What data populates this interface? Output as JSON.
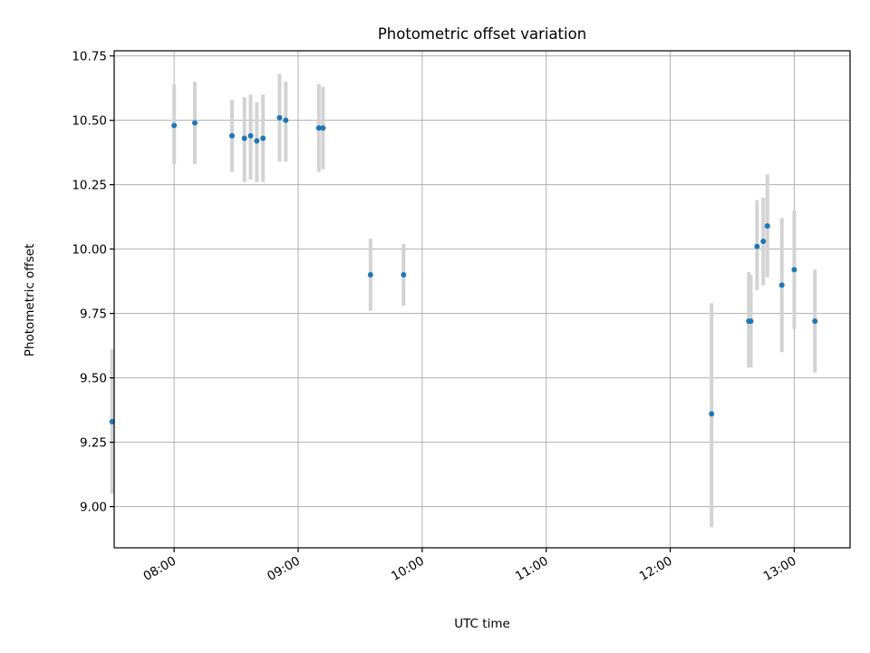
{
  "chart_data": {
    "type": "scatter",
    "title": "Photometric offset variation",
    "xlabel": "UTC time",
    "ylabel": "Photometric offset",
    "x_axis": {
      "kind": "time",
      "range": [
        "07:31",
        "13:27"
      ],
      "ticks": [
        "08:00",
        "09:00",
        "10:00",
        "11:00",
        "12:00",
        "13:00"
      ]
    },
    "y_axis": {
      "range": [
        8.84,
        10.77
      ],
      "ticks": [
        "9.00",
        "9.25",
        "9.50",
        "9.75",
        "10.00",
        "10.25",
        "10.50",
        "10.75"
      ]
    },
    "grid": true,
    "colors": {
      "point": "#1f77b4",
      "errorbar": "#d3d3d3",
      "grid": "#b0b0b0"
    },
    "points": [
      {
        "t": "07:30",
        "y": 9.33,
        "lo": 9.05,
        "hi": 9.61
      },
      {
        "t": "08:00",
        "y": 10.48,
        "lo": 10.33,
        "hi": 10.64
      },
      {
        "t": "08:10",
        "y": 10.49,
        "lo": 10.33,
        "hi": 10.65
      },
      {
        "t": "08:28",
        "y": 10.44,
        "lo": 10.3,
        "hi": 10.58
      },
      {
        "t": "08:34",
        "y": 10.43,
        "lo": 10.26,
        "hi": 10.59
      },
      {
        "t": "08:37",
        "y": 10.44,
        "lo": 10.27,
        "hi": 10.6
      },
      {
        "t": "08:40",
        "y": 10.42,
        "lo": 10.26,
        "hi": 10.57
      },
      {
        "t": "08:43",
        "y": 10.43,
        "lo": 10.26,
        "hi": 10.6
      },
      {
        "t": "08:51",
        "y": 10.51,
        "lo": 10.34,
        "hi": 10.68
      },
      {
        "t": "08:54",
        "y": 10.5,
        "lo": 10.34,
        "hi": 10.65
      },
      {
        "t": "09:10",
        "y": 10.47,
        "lo": 10.3,
        "hi": 10.64
      },
      {
        "t": "09:12",
        "y": 10.47,
        "lo": 10.31,
        "hi": 10.63
      },
      {
        "t": "09:35",
        "y": 9.9,
        "lo": 9.76,
        "hi": 10.04
      },
      {
        "t": "09:51",
        "y": 9.9,
        "lo": 9.78,
        "hi": 10.02
      },
      {
        "t": "12:20",
        "y": 9.36,
        "lo": 8.92,
        "hi": 9.79
      },
      {
        "t": "12:38",
        "y": 9.72,
        "lo": 9.54,
        "hi": 9.91
      },
      {
        "t": "12:39",
        "y": 9.72,
        "lo": 9.54,
        "hi": 9.9
      },
      {
        "t": "12:42",
        "y": 10.01,
        "lo": 9.84,
        "hi": 10.19
      },
      {
        "t": "12:45",
        "y": 10.03,
        "lo": 9.86,
        "hi": 10.2
      },
      {
        "t": "12:47",
        "y": 10.09,
        "lo": 9.89,
        "hi": 10.29
      },
      {
        "t": "12:54",
        "y": 9.86,
        "lo": 9.6,
        "hi": 10.12
      },
      {
        "t": "13:00",
        "y": 9.92,
        "lo": 9.69,
        "hi": 10.15
      },
      {
        "t": "13:10",
        "y": 9.72,
        "lo": 9.52,
        "hi": 9.92
      }
    ]
  }
}
